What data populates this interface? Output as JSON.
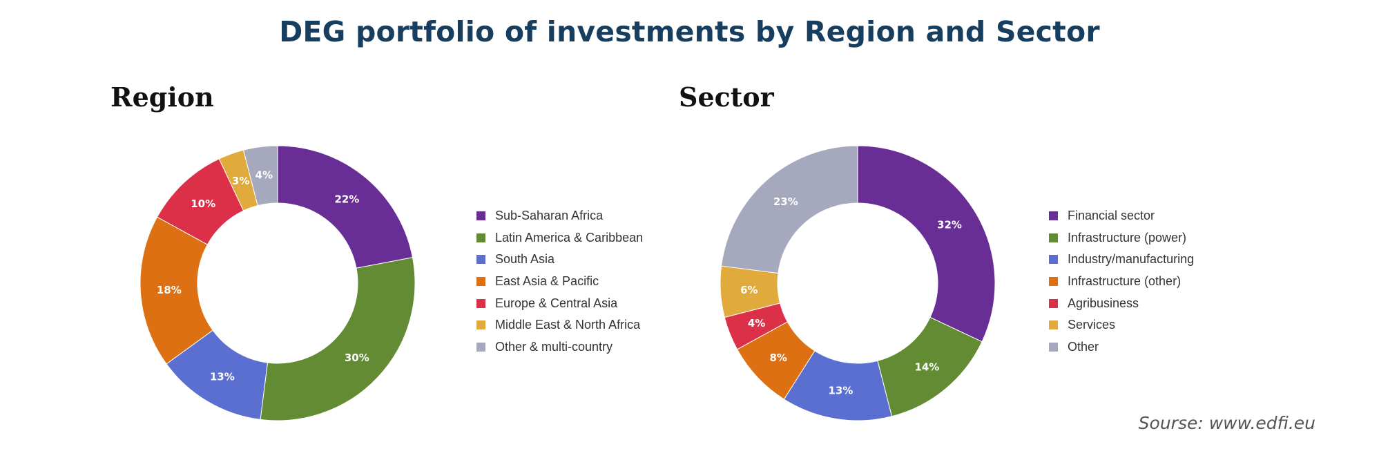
{
  "title": "DEG portfolio of investments by Region and Sector",
  "source": "Sourse: www.edfi.eu",
  "chart_data": [
    {
      "type": "pie",
      "title": "Region",
      "donut": true,
      "legend": "right",
      "categories": [
        "Sub-Saharan Africa",
        "Latin America & Caribbean",
        "South Asia",
        "East Asia & Pacific",
        "Europe & Central Asia",
        "Middle East & North Africa",
        "Other & multi-country"
      ],
      "values": [
        22,
        30,
        13,
        18,
        10,
        3,
        4
      ],
      "labels": [
        "22%",
        "30%",
        "13%",
        "18%",
        "10%",
        "3%",
        "4%"
      ],
      "colors": [
        "#692e96",
        "#628b33",
        "#5a6fcf",
        "#dd7013",
        "#dc3048",
        "#e1aa3c",
        "#a6a8bd"
      ]
    },
    {
      "type": "pie",
      "title": "Sector",
      "donut": true,
      "legend": "right",
      "categories": [
        "Financial sector",
        "Infrastructure (power)",
        "Industry/manufacturing",
        "Infrastructure (other)",
        "Agribusiness",
        "Services",
        "Other"
      ],
      "values": [
        32,
        14,
        13,
        8,
        4,
        6,
        23
      ],
      "labels": [
        "32%",
        "14%",
        "13%",
        "8%",
        "4%",
        "6%",
        "23%"
      ],
      "colors": [
        "#692e96",
        "#628b33",
        "#5a6fcf",
        "#dd7013",
        "#dc3048",
        "#e1aa3c",
        "#a6a8bd"
      ]
    }
  ]
}
